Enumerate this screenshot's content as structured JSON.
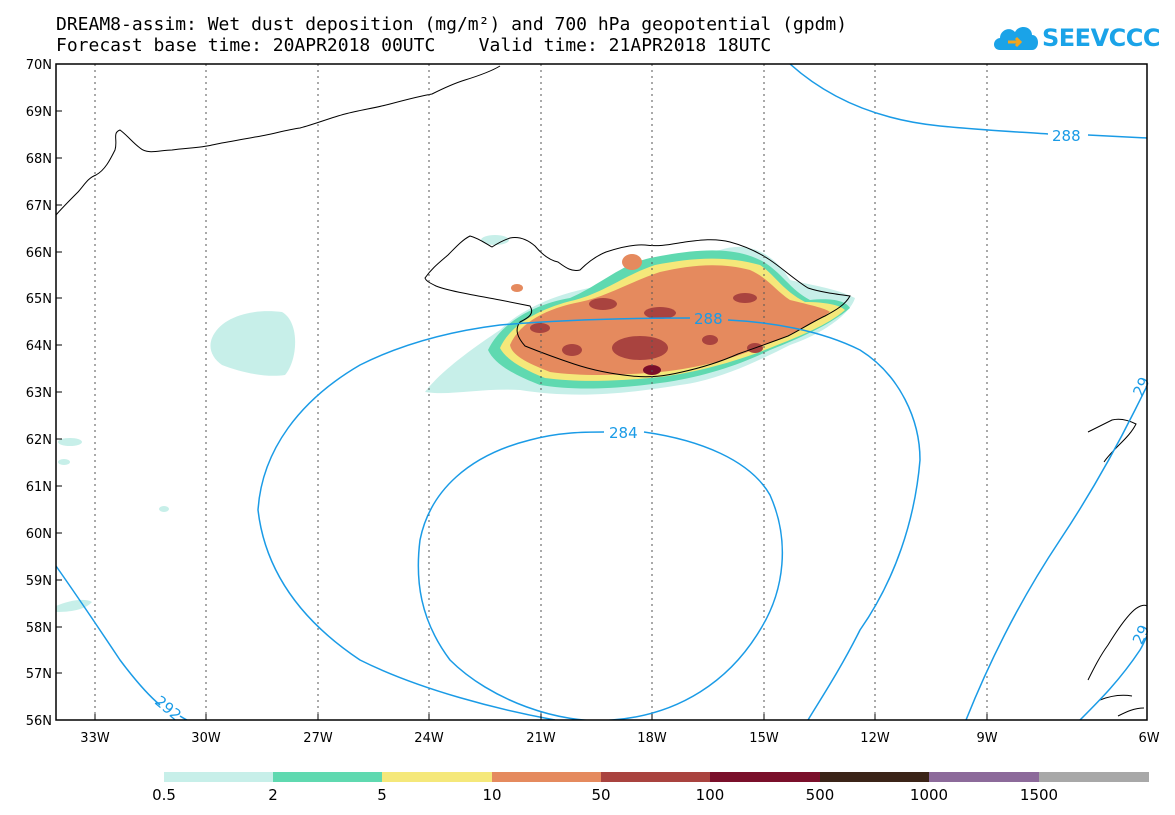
{
  "header": {
    "title_line1": "DREAM8-assim: Wet dust deposition (mg/m²) and 700 hPa geopotential (gpdm)",
    "title_line2": "Forecast base time: 20APR2018 00UTC    Valid time: 21APR2018 18UTC"
  },
  "logo": {
    "text": "SEEVCCC",
    "color": "#1aa3e8"
  },
  "map": {
    "lat_labels": [
      "70N",
      "69N",
      "68N",
      "67N",
      "66N",
      "65N",
      "64N",
      "63N",
      "62N",
      "61N",
      "60N",
      "59N",
      "58N",
      "57N",
      "56N"
    ],
    "lon_labels": [
      "33W",
      "30W",
      "27W",
      "24W",
      "21W",
      "18W",
      "15W",
      "12W",
      "9W",
      "6W"
    ],
    "contour_labels": {
      "c288_a": "288",
      "c288_b": "288",
      "c284": "284",
      "c292": "292",
      "c29_e1": "29",
      "c29_e2": "29"
    },
    "contour_color": "#1a9be6"
  },
  "legend": {
    "labels": [
      "0.5",
      "2",
      "5",
      "10",
      "50",
      "100",
      "500",
      "1000",
      "1500"
    ],
    "colors": [
      "#c7efe9",
      "#5fd9b0",
      "#f5e87a",
      "#e58a5e",
      "#a9433f",
      "#7a0f2a",
      "#3b2418",
      "#8c6a9a",
      "#a8a8a8"
    ]
  }
}
